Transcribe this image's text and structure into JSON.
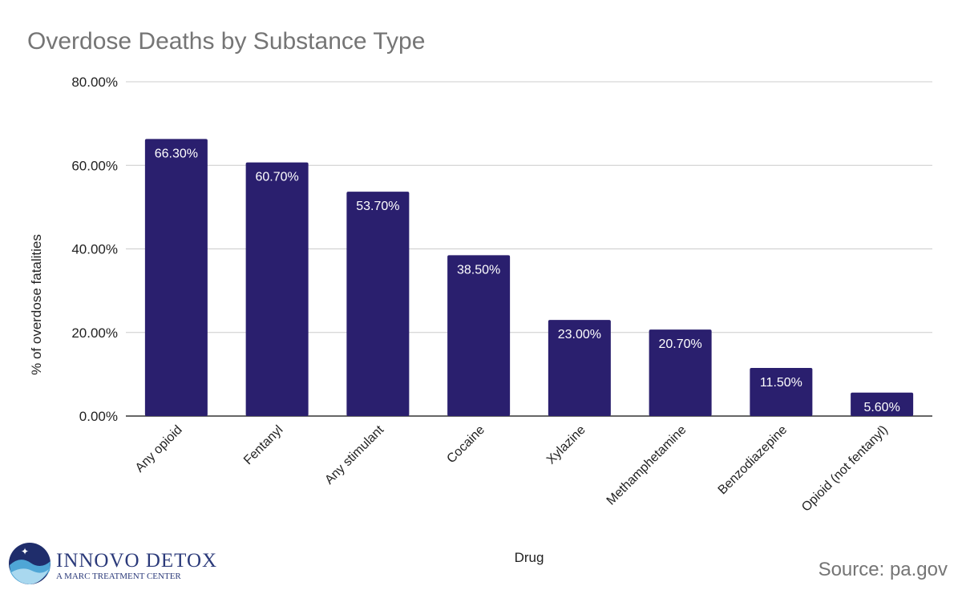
{
  "chart_data": {
    "type": "bar",
    "title": "Overdose Deaths by Substance Type",
    "xlabel": "Drug",
    "ylabel": "% of overdose fatalities",
    "ylim": [
      0,
      80
    ],
    "yticks": [
      "0.00%",
      "20.00%",
      "40.00%",
      "60.00%",
      "80.00%"
    ],
    "ytick_values": [
      0,
      20,
      40,
      60,
      80
    ],
    "grid": true,
    "categories": [
      "Any opioid",
      "Fentanyl",
      "Any stimulant",
      "Cocaine",
      "Xylazine",
      "Methamphetamine",
      "Benzodiazepine",
      "Opioid (not fentanyl)"
    ],
    "values": [
      66.3,
      60.7,
      53.7,
      38.5,
      23.0,
      20.7,
      11.5,
      5.6
    ],
    "data_labels": [
      "66.30%",
      "60.70%",
      "53.70%",
      "38.50%",
      "23.00%",
      "20.70%",
      "11.50%",
      "5.60%"
    ],
    "bar_color": "#2a1f6e"
  },
  "source": "Source: pa.gov",
  "logo": {
    "name": "INNOVO DETOX",
    "tagline": "A MARC TREATMENT CENTER"
  }
}
